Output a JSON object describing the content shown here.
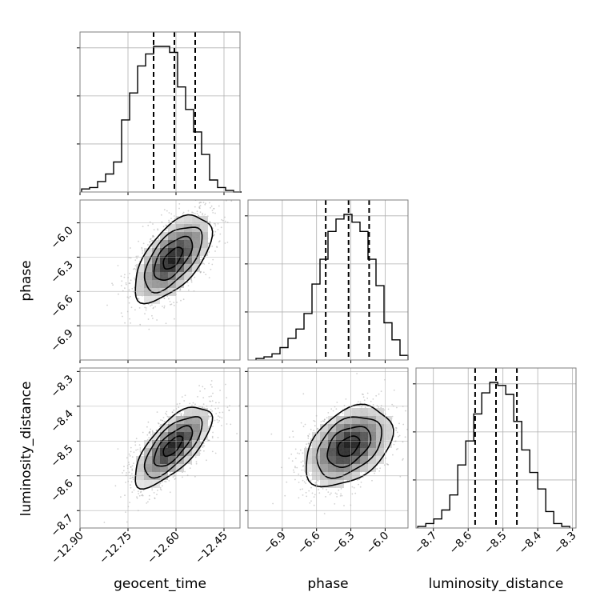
{
  "figure": {
    "type": "corner_plot",
    "parameters": [
      "geocent_time",
      "phase",
      "luminosity_distance"
    ]
  },
  "chart_data": [
    {
      "type": "histogram",
      "panel": "geocent_time",
      "xlim": [
        -12.9,
        -12.4
      ],
      "bin_edges": [
        -12.895,
        -12.87,
        -12.845,
        -12.82,
        -12.795,
        -12.77,
        -12.745,
        -12.72,
        -12.695,
        -12.67,
        -12.645,
        -12.62,
        -12.595,
        -12.57,
        -12.545,
        -12.52,
        -12.495,
        -12.47,
        -12.445,
        -12.42,
        -12.395
      ],
      "counts": [
        2,
        3,
        7,
        12,
        20,
        48,
        66,
        84,
        92,
        97,
        97,
        93,
        70,
        55,
        40,
        25,
        8,
        3,
        1,
        0
      ],
      "quantiles": [
        -12.67,
        -12.605,
        -12.54
      ],
      "grid": true
    },
    {
      "type": "histogram",
      "panel": "phase",
      "xlim": [
        -7.2,
        -5.8
      ],
      "bin_edges": [
        -7.13,
        -7.06,
        -6.99,
        -6.92,
        -6.85,
        -6.78,
        -6.71,
        -6.64,
        -6.57,
        -6.5,
        -6.43,
        -6.36,
        -6.29,
        -6.22,
        -6.15,
        -6.08,
        -6.01,
        -5.94,
        -5.87,
        -5.8
      ],
      "counts": [
        1,
        2,
        4,
        8,
        14,
        20,
        30,
        49,
        65,
        83,
        91,
        94,
        89,
        83,
        65,
        48,
        24,
        13,
        3
      ],
      "quantiles": [
        -6.52,
        -6.32,
        -6.14
      ],
      "grid": true
    },
    {
      "type": "histogram",
      "panel": "luminosity_distance",
      "xlim": [
        -8.75,
        -8.29
      ],
      "bin_edges": [
        -8.745,
        -8.722,
        -8.699,
        -8.676,
        -8.653,
        -8.63,
        -8.607,
        -8.584,
        -8.561,
        -8.538,
        -8.515,
        -8.492,
        -8.469,
        -8.446,
        -8.423,
        -8.4,
        -8.377,
        -8.354,
        -8.331,
        -8.308
      ],
      "counts": [
        1,
        3,
        6,
        12,
        22,
        42,
        58,
        76,
        90,
        97,
        95,
        89,
        71,
        52,
        37,
        26,
        11,
        3,
        1
      ],
      "quantiles": [
        -8.58,
        -8.52,
        -8.46
      ],
      "grid": true
    },
    {
      "type": "scatter_density",
      "x_param": "geocent_time",
      "y_param": "phase",
      "xlim": [
        -12.9,
        -12.4
      ],
      "ylim": [
        -7.2,
        -5.8
      ],
      "center": [
        -12.61,
        -6.31
      ],
      "std": [
        0.06,
        0.19
      ],
      "correlation": 0.6,
      "contour_levels_sigma": [
        0.5,
        1.0,
        1.5,
        2.0
      ]
    },
    {
      "type": "scatter_density",
      "x_param": "geocent_time",
      "y_param": "luminosity_distance",
      "xlim": [
        -12.9,
        -12.4
      ],
      "ylim": [
        -8.75,
        -8.29
      ],
      "center": [
        -12.61,
        -8.515
      ],
      "std": [
        0.06,
        0.058
      ],
      "correlation": 0.7,
      "contour_levels_sigma": [
        0.5,
        1.0,
        1.5,
        2.0
      ]
    },
    {
      "type": "scatter_density",
      "x_param": "phase",
      "y_param": "luminosity_distance",
      "xlim": [
        -7.2,
        -5.8
      ],
      "ylim": [
        -8.75,
        -8.29
      ],
      "center": [
        -6.32,
        -8.515
      ],
      "std": [
        0.19,
        0.058
      ],
      "correlation": 0.4,
      "contour_levels_sigma": [
        0.5,
        1.0,
        1.5,
        2.0
      ]
    }
  ],
  "axes": {
    "geocent_time": {
      "label": "geocent_time",
      "ticks": [
        -12.9,
        -12.75,
        -12.6,
        -12.45
      ],
      "tick_labels": [
        "−12.90",
        "−12.75",
        "−12.60",
        "−12.45"
      ]
    },
    "phase": {
      "label": "phase",
      "x_ticks": [
        -6.9,
        -6.6,
        -6.3,
        -6.0
      ],
      "x_tick_labels": [
        "−6.9",
        "−6.6",
        "−6.3",
        "−6.0"
      ],
      "y_ticks": [
        -6.0,
        -6.3,
        -6.6,
        -6.9
      ],
      "y_tick_labels": [
        "−6.0",
        "−6.3",
        "−6.6",
        "−6.9"
      ]
    },
    "luminosity_distance": {
      "label": "luminosity_distance",
      "x_ticks": [
        -8.7,
        -8.6,
        -8.5,
        -8.4,
        -8.3
      ],
      "x_tick_labels": [
        "−8.7",
        "−8.6",
        "−8.5",
        "−8.4",
        "−8.3"
      ],
      "y_ticks": [
        -8.3,
        -8.4,
        -8.5,
        -8.6,
        -8.7
      ],
      "y_tick_labels": [
        "−8.3",
        "−8.4",
        "−8.5",
        "−8.6",
        "−8.7"
      ]
    }
  },
  "colors": {
    "line": "#000000",
    "grid": "#b0b0b0",
    "frame": "#7f7f7f",
    "scatter": "#9a9a9a"
  }
}
